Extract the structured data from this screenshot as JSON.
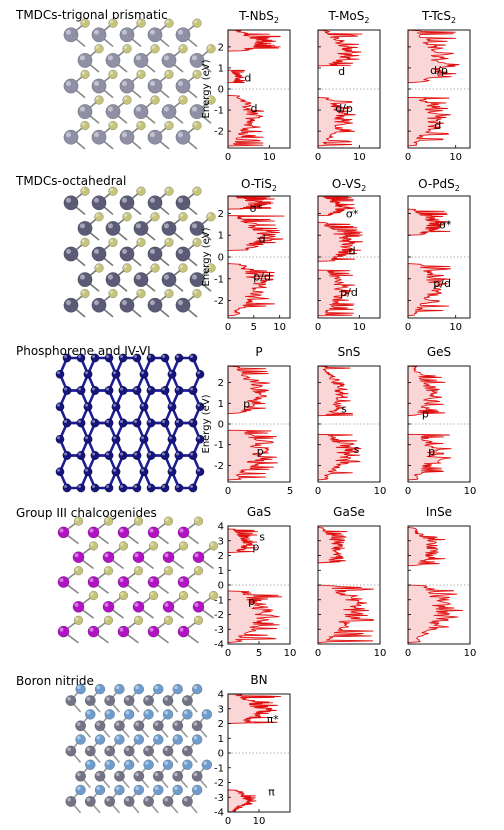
{
  "rows": [
    {
      "title": "TMDCs-trigonal prismatic",
      "lattice": {
        "style": "trigonal",
        "atom_large": "#8f90a6",
        "atom_small": "#c6c37a",
        "bond": "#888888"
      },
      "ylabel": "Energy (eV)",
      "yticks": [
        "2",
        "1",
        "0",
        "-1",
        "-2"
      ],
      "ylim": [
        -2.8,
        2.8
      ],
      "panels": [
        {
          "name": "T-NbS2",
          "title": "T-NbS",
          "sub": "2",
          "xticks": [
            "0",
            "10"
          ],
          "xmax": 15,
          "labels": [
            {
              "text": "d",
              "e": 0.55,
              "x": 0.32
            },
            {
              "text": "d",
              "e": -0.9,
              "x": 0.42
            }
          ],
          "bands": [
            [
              1.8,
              2.8,
              13
            ],
            [
              0.3,
              0.9,
              4
            ],
            [
              -0.3,
              -2.7,
              9
            ]
          ]
        },
        {
          "name": "T-MoS2",
          "title": "T-MoS",
          "sub": "2",
          "xticks": [
            "0",
            "10"
          ],
          "xmax": 15,
          "labels": [
            {
              "text": "d",
              "e": 0.85,
              "x": 0.38
            },
            {
              "text": "d/p",
              "e": -0.9,
              "x": 0.42
            }
          ],
          "bands": [
            [
              1.1,
              2.8,
              11
            ],
            [
              -0.4,
              -2.7,
              9
            ]
          ]
        },
        {
          "name": "T-TcS2",
          "title": "T-TcS",
          "sub": "2",
          "xticks": [
            "0",
            "10"
          ],
          "xmax": 13,
          "labels": [
            {
              "text": "d/p",
              "e": 0.9,
              "x": 0.5
            },
            {
              "text": "d",
              "e": -1.7,
              "x": 0.48
            }
          ],
          "bands": [
            [
              0.3,
              2.8,
              11
            ],
            [
              -0.4,
              -2.7,
              9
            ]
          ]
        }
      ]
    },
    {
      "title": "TMDCs-octahedral",
      "lattice": {
        "style": "octa",
        "atom_large": "#5b5b78",
        "atom_small": "#c6c37a",
        "bond": "#777777"
      },
      "ylabel": "Energy (eV)",
      "yticks": [
        "2",
        "1",
        "0",
        "-1",
        "-2"
      ],
      "ylim": [
        -2.8,
        2.8
      ],
      "panels": [
        {
          "name": "O-TiS2",
          "title": "O-TiS",
          "sub": "2",
          "xticks": [
            "0",
            "5",
            "10"
          ],
          "xmax": 12,
          "labels": [
            {
              "text": "σ*",
              "e": 2.25,
              "x": 0.45
            },
            {
              "text": "d",
              "e": 0.85,
              "x": 0.55
            },
            {
              "text": "p/d",
              "e": -0.9,
              "x": 0.55
            }
          ],
          "bands": [
            [
              2.2,
              2.8,
              9
            ],
            [
              0.3,
              1.9,
              11
            ],
            [
              -0.3,
              -2.7,
              9
            ]
          ]
        },
        {
          "name": "O-VS2",
          "title": "O-VS",
          "sub": "2",
          "xticks": [
            "0",
            "10"
          ],
          "xmax": 15,
          "labels": [
            {
              "text": "σ*",
              "e": 2.0,
              "x": 0.55
            },
            {
              "text": "d",
              "e": 0.3,
              "x": 0.55
            },
            {
              "text": "p/d",
              "e": -1.6,
              "x": 0.5
            }
          ],
          "bands": [
            [
              1.9,
              2.8,
              9
            ],
            [
              -0.2,
              1.6,
              11
            ],
            [
              -0.6,
              -2.7,
              9
            ]
          ]
        },
        {
          "name": "O-PdS2",
          "title": "O-PdS",
          "sub": "2",
          "xticks": [
            "0",
            "10"
          ],
          "xmax": 13,
          "labels": [
            {
              "text": "σ*",
              "e": 1.5,
              "x": 0.6
            },
            {
              "text": "p/d",
              "e": -1.2,
              "x": 0.55
            }
          ],
          "bands": [
            [
              1.0,
              2.2,
              9
            ],
            [
              -0.3,
              -2.7,
              9
            ]
          ]
        }
      ]
    },
    {
      "title": "Phosphorene and IV-VI",
      "lattice": {
        "style": "phos",
        "atom_large": "#15157a",
        "atom_small": "#15157a",
        "bond": "#1d1d96"
      },
      "ylabel": "Energy (eV)",
      "yticks": [
        "2",
        "1",
        "0",
        "-1",
        "-2"
      ],
      "ylim": [
        -2.8,
        2.8
      ],
      "panels": [
        {
          "name": "P",
          "title": "P",
          "sub": "",
          "xticks": [
            "0",
            "5"
          ],
          "xmax": 5,
          "labels": [
            {
              "text": "p",
              "e": 1.0,
              "x": 0.3
            },
            {
              "text": "p",
              "e": -1.3,
              "x": 0.52
            }
          ],
          "bands": [
            [
              0.5,
              2.8,
              4
            ],
            [
              -0.3,
              -2.7,
              4
            ]
          ]
        },
        {
          "name": "SnS",
          "title": "SnS",
          "sub": "",
          "xticks": [
            "0",
            "10"
          ],
          "xmax": 10,
          "labels": [
            {
              "text": "s",
              "e": 0.75,
              "x": 0.42
            },
            {
              "text": "s",
              "e": -1.2,
              "x": 0.62
            }
          ],
          "bands": [
            [
              0.4,
              2.8,
              6
            ],
            [
              -0.5,
              -2.7,
              7
            ]
          ]
        },
        {
          "name": "GeS",
          "title": "GeS",
          "sub": "",
          "xticks": [
            "0",
            "10"
          ],
          "xmax": 10,
          "labels": [
            {
              "text": "p",
              "e": 0.5,
              "x": 0.28
            },
            {
              "text": "p",
              "e": -1.3,
              "x": 0.38
            }
          ],
          "bands": [
            [
              0.4,
              2.8,
              6
            ],
            [
              -0.5,
              -2.7,
              7
            ]
          ]
        }
      ]
    },
    {
      "title": "Group III chalcogenides",
      "lattice": {
        "style": "group3",
        "atom_large": "#b012c4",
        "atom_small": "#c6c37a",
        "bond": "#888888"
      },
      "ylabel": "",
      "yticks": [
        "4",
        "3",
        "2",
        "1",
        "0",
        "-1",
        "-2",
        "-3",
        "-4"
      ],
      "ylim": [
        -4,
        4
      ],
      "panels": [
        {
          "name": "GaS",
          "title": "GaS",
          "sub": "",
          "xticks": [
            "0",
            "5",
            "10"
          ],
          "xmax": 10,
          "labels": [
            {
              "text": "s",
              "e": 3.3,
              "x": 0.55
            },
            {
              "text": "p",
              "e": 2.6,
              "x": 0.45
            },
            {
              "text": "p",
              "e": -1.1,
              "x": 0.38
            }
          ],
          "bands": [
            [
              2.2,
              3.8,
              5
            ],
            [
              -0.4,
              -3.9,
              9
            ]
          ]
        },
        {
          "name": "GaSe",
          "title": "GaSe",
          "sub": "",
          "xticks": [
            "0",
            "10"
          ],
          "xmax": 10,
          "labels": [],
          "bands": [
            [
              1.5,
              3.9,
              5
            ],
            [
              0.0,
              -3.9,
              9
            ]
          ]
        },
        {
          "name": "InSe",
          "title": "InSe",
          "sub": "",
          "xticks": [
            "0",
            "10"
          ],
          "xmax": 10,
          "labels": [],
          "bands": [
            [
              1.3,
              3.9,
              6
            ],
            [
              0.0,
              -3.9,
              9
            ]
          ]
        }
      ]
    },
    {
      "title": "Boron nitride",
      "lattice": {
        "style": "bn",
        "atom_large": "#737386",
        "atom_small": "#6f9ccc",
        "bond": "#999999"
      },
      "ylabel": "",
      "yticks": [
        "4",
        "3",
        "2",
        "1",
        "0",
        "-1",
        "-2",
        "-3",
        "-4"
      ],
      "ylim": [
        -4,
        4
      ],
      "panels": [
        {
          "name": "BN",
          "title": "BN",
          "sub": "",
          "xticks": [
            "0",
            "10"
          ],
          "xmax": 20,
          "labels": [
            {
              "text": "π*",
              "e": 2.3,
              "x": 0.72
            },
            {
              "text": "π",
              "e": -2.6,
              "x": 0.7
            }
          ],
          "bands": [
            [
              2.0,
              4.0,
              17
            ],
            [
              -2.5,
              -4.0,
              10
            ]
          ]
        }
      ]
    }
  ],
  "colors": {
    "fill": "#fbd6d6",
    "line": "#e01010",
    "fermi": "#9a9a9a"
  }
}
